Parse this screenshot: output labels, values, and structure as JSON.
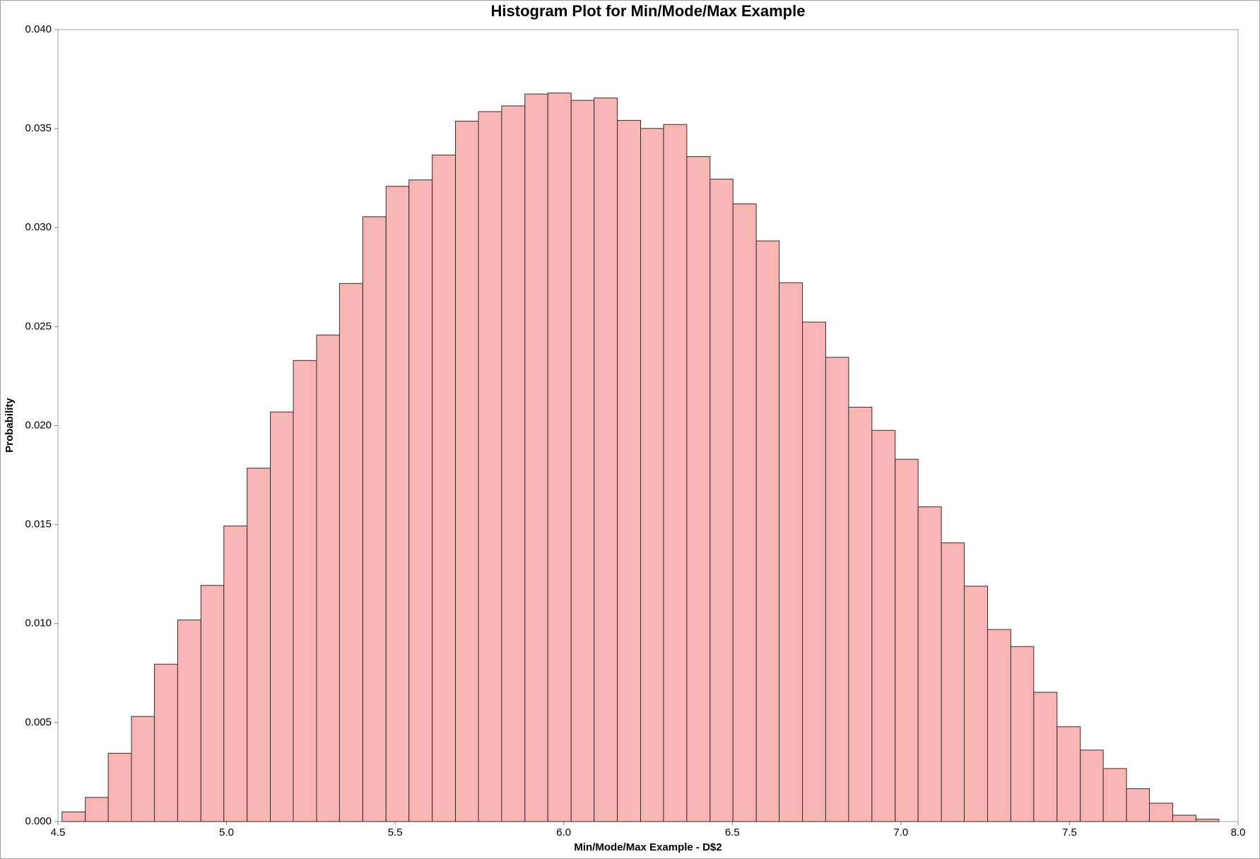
{
  "chart_data": {
    "type": "histogram",
    "title": "Histogram Plot for Min/Mode/Max Example",
    "x_label": "Min/Mode/Max Example - D$2",
    "y_label": "Probability",
    "color": "#f7b6b3",
    "edge_color": "#3a2a2a",
    "bins": [
      4.512,
      4.581,
      4.649,
      4.718,
      4.786,
      4.855,
      4.924,
      4.992,
      5.061,
      5.13,
      5.198,
      5.267,
      5.335,
      5.404,
      5.473,
      5.541,
      5.61,
      5.679,
      5.747,
      5.816,
      5.885,
      5.953,
      6.022,
      6.09,
      6.159,
      6.228,
      6.296,
      6.365,
      6.434,
      6.502,
      6.571,
      6.639,
      6.708,
      6.777,
      6.845,
      6.914,
      6.983,
      7.051,
      7.12,
      7.188,
      7.257,
      7.326,
      7.394,
      7.463,
      7.532,
      7.6,
      7.669,
      7.737,
      7.806,
      7.875,
      7.943
    ],
    "values": [
      0.00049,
      0.00122,
      0.00345,
      0.00531,
      0.00795,
      0.01018,
      0.01193,
      0.01493,
      0.01785,
      0.02069,
      0.02329,
      0.02458,
      0.02718,
      0.03055,
      0.03209,
      0.03241,
      0.03367,
      0.03538,
      0.03586,
      0.03615,
      0.03675,
      0.0368,
      0.03643,
      0.03655,
      0.03542,
      0.03501,
      0.03521,
      0.03359,
      0.03245,
      0.0312,
      0.02933,
      0.02722,
      0.02523,
      0.02345,
      0.02093,
      0.01976,
      0.0183,
      0.0159,
      0.01408,
      0.01189,
      0.0097,
      0.00884,
      0.00653,
      0.00479,
      0.00361,
      0.00268,
      0.00166,
      0.00093,
      0.00032,
      0.00012
    ],
    "xlim": [
      4.5,
      8.0
    ],
    "ylim": [
      0,
      0.04
    ],
    "xticks": [
      {
        "value": 4.5,
        "label": "4.5"
      },
      {
        "value": 5.0,
        "label": "5.0"
      },
      {
        "value": 5.5,
        "label": "5.5"
      },
      {
        "value": 6.0,
        "label": "6.0"
      },
      {
        "value": 6.5,
        "label": "6.5"
      },
      {
        "value": 7.0,
        "label": "7.0"
      },
      {
        "value": 7.5,
        "label": "7.5"
      },
      {
        "value": 8.0,
        "label": "8.0"
      }
    ],
    "yticks": [
      {
        "value": 0,
        "label": "0.000"
      },
      {
        "value": 0.005,
        "label": "0.005"
      },
      {
        "value": 0.01,
        "label": "0.010"
      },
      {
        "value": 0.015,
        "label": "0.015"
      },
      {
        "value": 0.02,
        "label": "0.020"
      },
      {
        "value": 0.025,
        "label": "0.025"
      },
      {
        "value": 0.03,
        "label": "0.030"
      },
      {
        "value": 0.035,
        "label": "0.035"
      },
      {
        "value": 0.04,
        "label": "0.040"
      }
    ]
  }
}
